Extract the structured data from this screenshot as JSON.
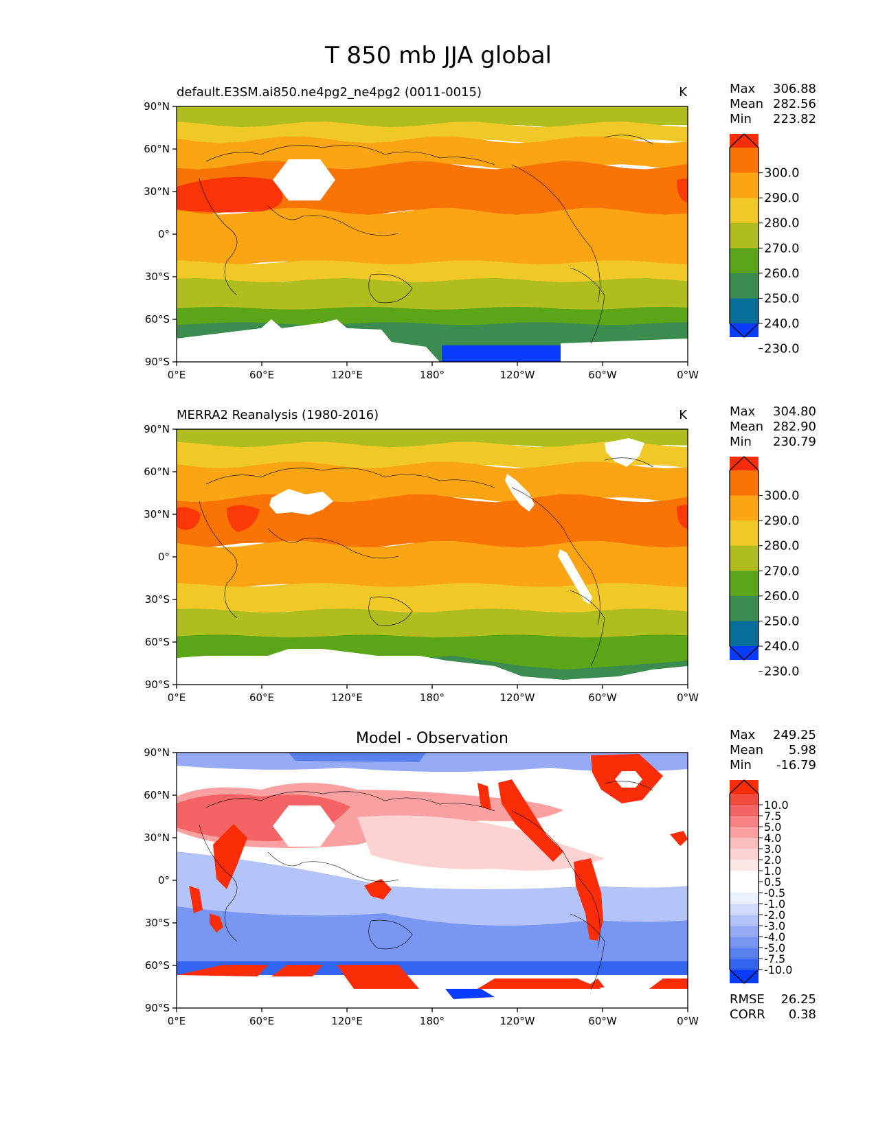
{
  "figure": {
    "title": "T 850 mb JJA global"
  },
  "axes": {
    "lat_ticks": [
      "90°N",
      "60°N",
      "30°N",
      "0°",
      "30°S",
      "60°S",
      "90°S"
    ],
    "lon_ticks": [
      "0°E",
      "60°E",
      "120°E",
      "180°",
      "120°W",
      "60°W",
      "0°W"
    ]
  },
  "stat_labels": {
    "max": "Max",
    "mean": "Mean",
    "min": "Min",
    "rmse": "RMSE",
    "corr": "CORR"
  },
  "colors": {
    "abs": [
      "#0a3cff",
      "#0a6e9a",
      "#3c8c50",
      "#5aa518",
      "#afbe1e",
      "#f0c828",
      "#fba514",
      "#fa7305",
      "#fa2d08"
    ],
    "diff": [
      "#0a3cff",
      "#3264f0",
      "#5a82ee",
      "#7896f2",
      "#96aaf5",
      "#b4c3f8",
      "#d2dcfa",
      "#ebf0fd",
      "#ffffff",
      "#ffffff",
      "#fde6e6",
      "#fcd2d2",
      "#fbbebe",
      "#faa0a0",
      "#f88282",
      "#f56464",
      "#f04b3c",
      "#fa2d08"
    ]
  },
  "chart_data": [
    {
      "type": "heatmap",
      "title": "default.E3SM.ai850.ne4pg2_ne4pg2 (0011-0015)",
      "units": "K",
      "stats": {
        "max": "306.88",
        "mean": "282.56",
        "min": "223.82"
      },
      "colorbar_levels": [
        "300.0",
        "290.0",
        "280.0",
        "270.0",
        "260.0",
        "250.0",
        "240.0",
        "230.0"
      ],
      "xlim": [
        0,
        360
      ],
      "ylim": [
        -90,
        90
      ]
    },
    {
      "type": "heatmap",
      "title": "MERRA2 Reanalysis (1980-2016)",
      "units": "K",
      "stats": {
        "max": "304.80",
        "mean": "282.90",
        "min": "230.79"
      },
      "colorbar_levels": [
        "300.0",
        "290.0",
        "280.0",
        "270.0",
        "260.0",
        "250.0",
        "240.0",
        "230.0"
      ],
      "xlim": [
        0,
        360
      ],
      "ylim": [
        -90,
        90
      ]
    },
    {
      "type": "heatmap",
      "title": "Model - Observation",
      "units": "",
      "stats": {
        "max": "249.25",
        "mean": "5.98",
        "min": "-16.79"
      },
      "colorbar_levels": [
        "10.0",
        "7.5",
        "5.0",
        "4.0",
        "3.0",
        "2.0",
        "1.0",
        "0.5",
        "-0.5",
        "-1.0",
        "-2.0",
        "-3.0",
        "-4.0",
        "-5.0",
        "-7.5",
        "-10.0"
      ],
      "rmse": "26.25",
      "corr": "0.38",
      "xlim": [
        0,
        360
      ],
      "ylim": [
        -90,
        90
      ]
    }
  ]
}
